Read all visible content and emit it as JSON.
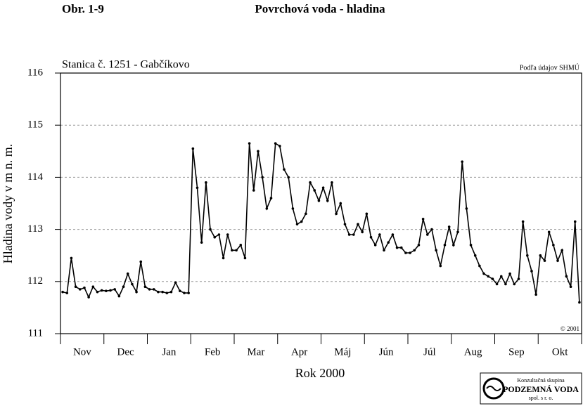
{
  "figure_label": "Obr. 1-9",
  "chart_data": {
    "type": "line",
    "title": "Povrchová voda - hladina",
    "subtitle": "Stanica č. 1251 - Gabčíkovo",
    "source": "Podľa údajov SHMÚ",
    "copyright": "© 2001",
    "y_label": "Hladina vody v m n. m.",
    "x_label": "Rok 2000",
    "categories": [
      "Nov",
      "Dec",
      "Jan",
      "Feb",
      "Mar",
      "Apr",
      "Máj",
      "Jún",
      "Júl",
      "Aug",
      "Sep",
      "Okt"
    ],
    "values": [
      [
        111.8,
        111.78,
        112.45,
        111.9,
        111.85,
        111.88,
        111.7,
        111.9,
        111.8,
        111.83
      ],
      [
        111.82,
        111.83,
        111.85,
        111.72,
        111.9,
        112.15,
        111.95,
        111.8,
        112.38,
        111.9
      ],
      [
        111.85,
        111.85,
        111.8,
        111.8,
        111.78,
        111.8,
        111.98,
        111.82,
        111.78,
        111.78
      ],
      [
        114.55,
        113.8,
        112.75,
        113.9,
        113.0,
        112.85,
        112.9,
        112.45,
        112.9,
        112.6
      ],
      [
        112.6,
        112.7,
        112.45,
        114.65,
        113.75,
        114.5,
        114.0,
        113.4,
        113.6,
        114.65
      ],
      [
        114.6,
        114.15,
        114.0,
        113.4,
        113.1,
        113.15,
        113.3,
        113.9,
        113.75,
        113.55
      ],
      [
        113.8,
        113.55,
        113.9,
        113.3,
        113.5,
        113.1,
        112.9,
        112.9,
        113.1,
        112.95
      ],
      [
        113.3,
        112.85,
        112.7,
        112.9,
        112.6,
        112.75,
        112.9,
        112.65,
        112.65,
        112.55
      ],
      [
        112.55,
        112.6,
        112.7,
        113.2,
        112.9,
        113.0,
        112.6,
        112.3,
        112.7,
        113.05
      ],
      [
        112.7,
        112.95,
        114.3,
        113.4,
        112.7,
        112.5,
        112.3,
        112.15,
        112.1,
        112.05
      ],
      [
        111.95,
        112.1,
        111.95,
        112.15,
        111.95,
        112.05,
        113.15,
        112.5,
        112.2,
        111.75
      ],
      [
        112.5,
        112.4,
        112.95,
        112.7,
        112.4,
        112.6,
        112.1,
        111.9,
        113.15,
        111.6
      ]
    ],
    "color": "#000000",
    "ylim": [
      111,
      116
    ],
    "yticks": [
      111,
      112,
      113,
      114,
      115,
      116
    ],
    "grid": true
  },
  "logo": {
    "line1": "Konzultačná skupina",
    "line2": "PODZEMNÁ VODA",
    "line3": "spol. s r. o."
  }
}
